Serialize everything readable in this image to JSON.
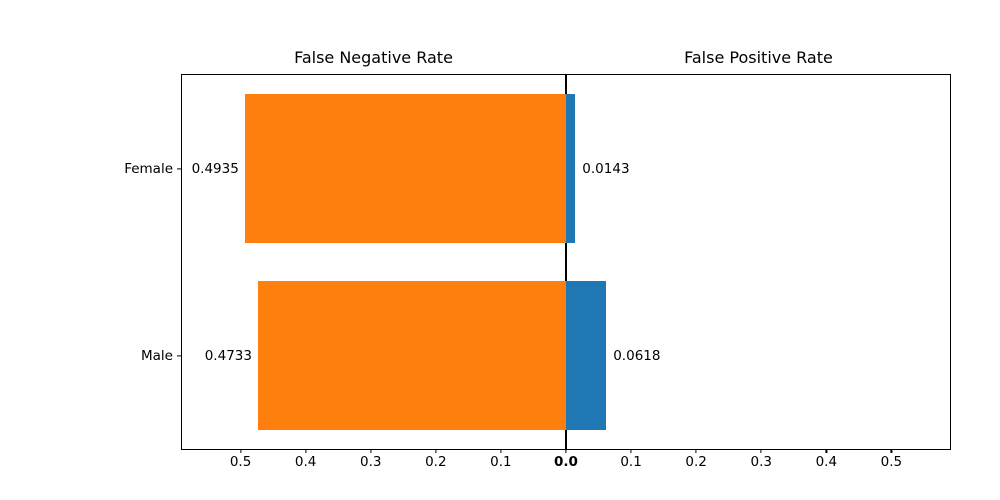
{
  "chart_data": {
    "type": "bar",
    "variant": "diverging-horizontal",
    "titles": {
      "left": "False Negative Rate",
      "right": "False Positive Rate"
    },
    "categories": [
      "Female",
      "Male"
    ],
    "series": [
      {
        "name": "False Negative Rate",
        "side": "left",
        "color": "#ff7f0e",
        "values": [
          0.4935,
          0.4733
        ]
      },
      {
        "name": "False Positive Rate",
        "side": "right",
        "color": "#1f77b4",
        "values": [
          0.0143,
          0.0618
        ]
      }
    ],
    "bar_labels": {
      "left": [
        "0.4935",
        "0.4733"
      ],
      "right": [
        "0.0143",
        "0.0618"
      ]
    },
    "x_ticks_left": [
      "0.5",
      "0.4",
      "0.3",
      "0.2",
      "0.1"
    ],
    "x_tick_center": "0.0",
    "x_ticks_right": [
      "0.1",
      "0.2",
      "0.3",
      "0.4",
      "0.5"
    ],
    "xlim_abs": 0.59,
    "tick_step": 0.1,
    "bar_height_frac": 0.8,
    "grid": false,
    "legend": "none",
    "colors": {
      "axis": "#000000",
      "text": "#000000",
      "background": "#ffffff"
    }
  }
}
